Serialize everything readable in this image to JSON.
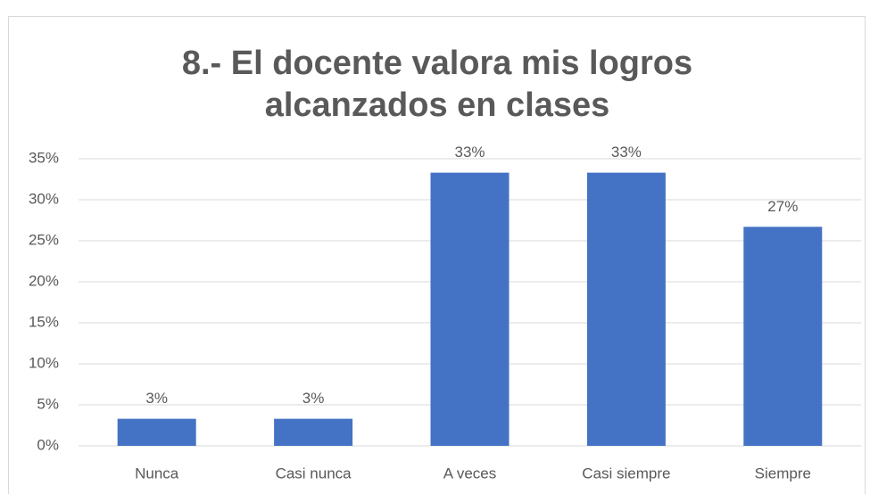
{
  "chart_data": {
    "type": "bar",
    "title": "8.- El docente valora mis logros alcanzados en clases",
    "categories": [
      "Nunca",
      "Casi nunca",
      "A veces",
      "Casi siempre",
      "Siempre"
    ],
    "values": [
      3.3,
      3.3,
      33.3,
      33.3,
      26.7
    ],
    "value_labels": [
      "3%",
      "3%",
      "33%",
      "33%",
      "27%"
    ],
    "color": "#4472c4",
    "ylim": [
      0,
      35
    ],
    "yticks": [
      {
        "value": 0,
        "label": "0%"
      },
      {
        "value": 5,
        "label": "5%"
      },
      {
        "value": 10,
        "label": "10%"
      },
      {
        "value": 15,
        "label": "15%"
      },
      {
        "value": 20,
        "label": "20%"
      },
      {
        "value": 25,
        "label": "25%"
      },
      {
        "value": 30,
        "label": "30%"
      },
      {
        "value": 35,
        "label": "35%"
      }
    ],
    "grid": true
  }
}
